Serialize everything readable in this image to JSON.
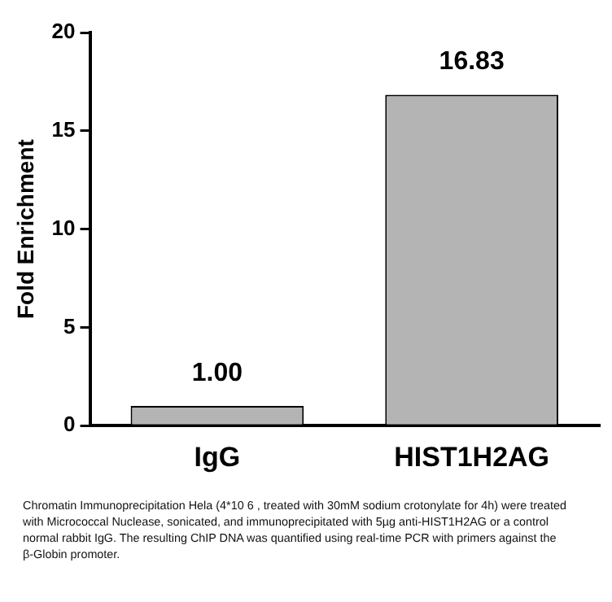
{
  "chart_data": {
    "type": "bar",
    "ylabel": "Fold Enrichment",
    "categories": [
      "IgG",
      "HIST1H2AG"
    ],
    "values": [
      1.0,
      16.83
    ],
    "color": "#b4b4b4",
    "value_labels": [
      "1.00",
      "16.83"
    ],
    "ylim": [
      0,
      20
    ],
    "yticks": [
      0,
      5,
      10,
      15,
      20
    ],
    "grid": false,
    "legend": false,
    "annotations": [
      "Chromatin Immunoprecipitation Hela (4*10 6 , treated with 30mM sodium crotonylate for 4h) were treated with Micrococcal Nuclease, sonicated, and immunoprecipitated with 5µg anti-HIST1H2AG or a control normal rabbit IgG. The resulting ChIP DNA was quantified using real-time PCR with primers against the β-Globin promoter."
    ]
  }
}
